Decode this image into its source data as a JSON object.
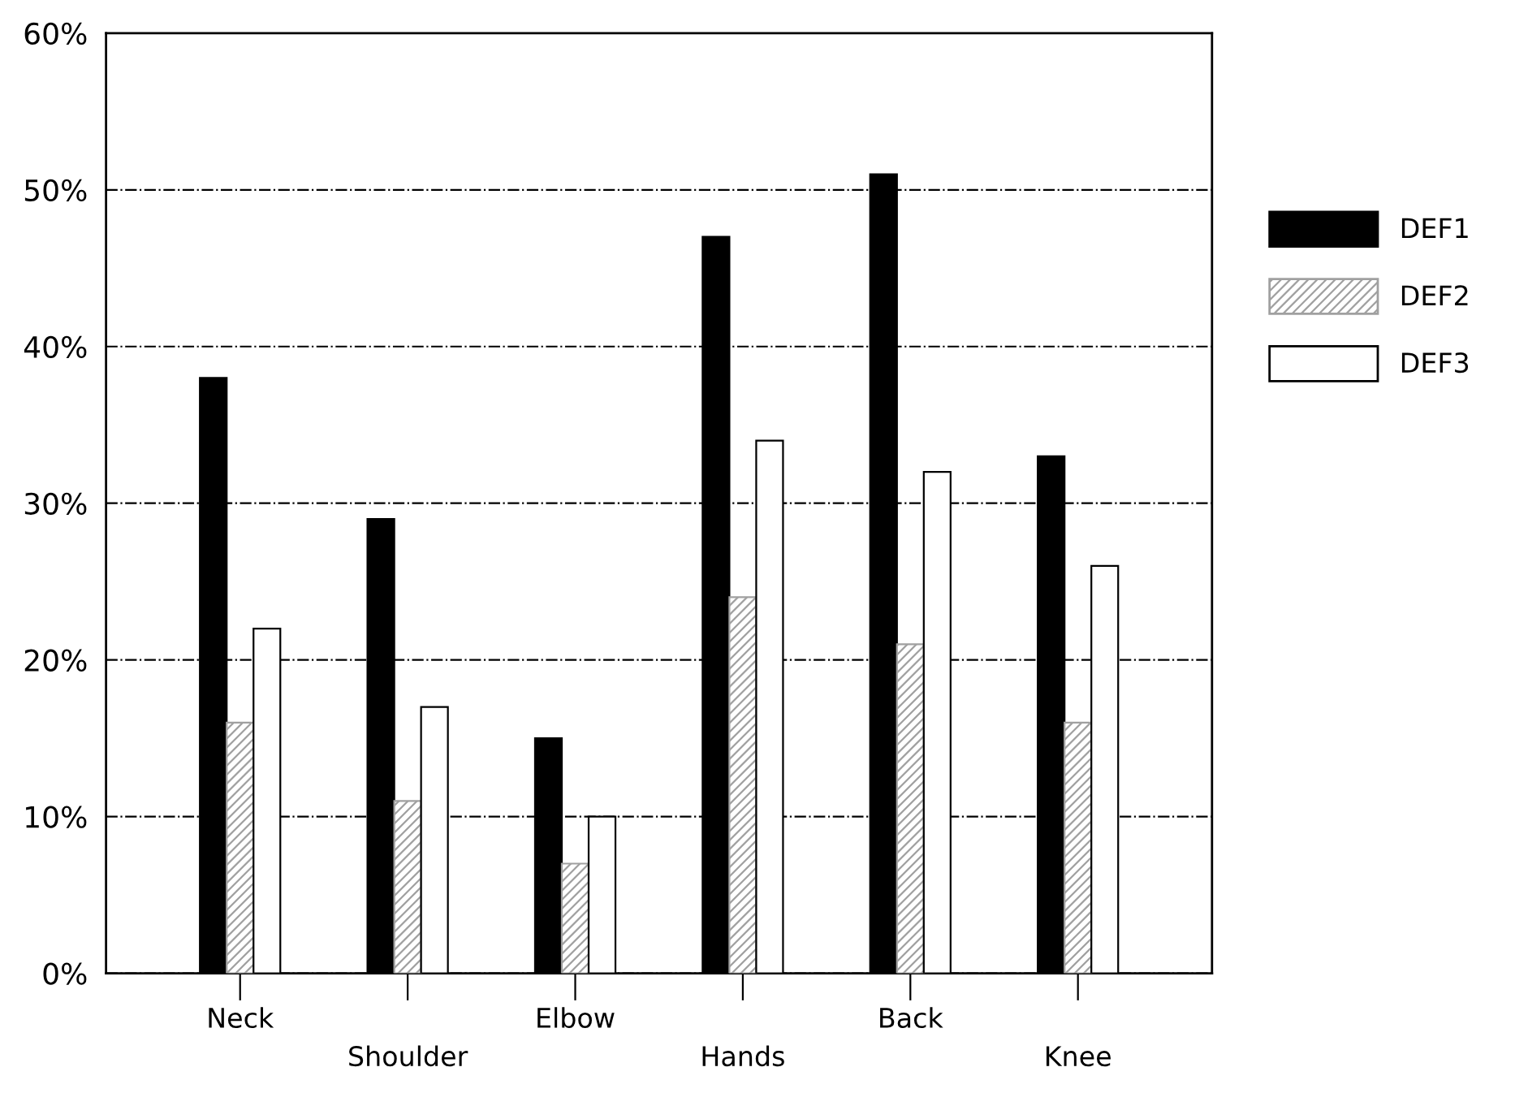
{
  "chart_data": {
    "type": "bar",
    "categories": [
      "Neck",
      "Shoulder",
      "Elbow",
      "Hands",
      "Back",
      "Knee"
    ],
    "series": [
      {
        "name": "DEF1",
        "color": "#000000",
        "values": [
          38,
          29,
          15,
          47,
          51,
          33
        ]
      },
      {
        "name": "DEF2",
        "color": "#a0a0a0",
        "values": [
          16,
          11,
          7,
          24,
          21,
          16
        ]
      },
      {
        "name": "DEF3",
        "color": "#ffffff",
        "values": [
          22,
          17,
          10,
          34,
          32,
          26
        ]
      }
    ],
    "ylim": [
      0,
      60
    ],
    "yticks": [
      {
        "value": 0,
        "label": "0%"
      },
      {
        "value": 10,
        "label": "10%"
      },
      {
        "value": 20,
        "label": "20%"
      },
      {
        "value": 30,
        "label": "30%"
      },
      {
        "value": 40,
        "label": "40%"
      },
      {
        "value": 50,
        "label": "50%"
      },
      {
        "value": 60,
        "label": "60%"
      }
    ],
    "grid": "y",
    "legend": "right"
  }
}
